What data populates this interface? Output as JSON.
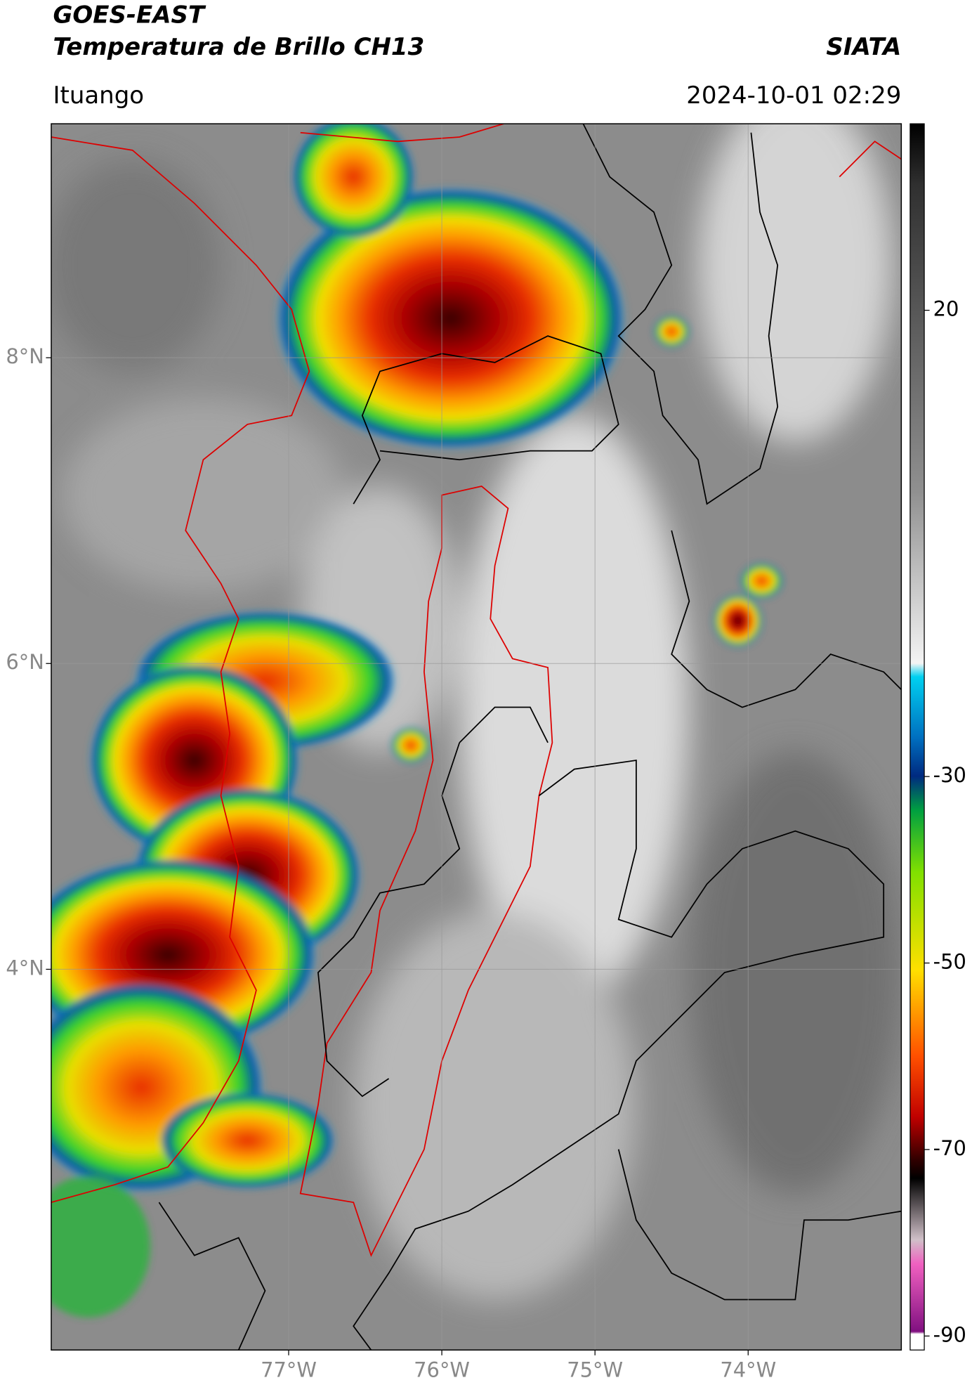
{
  "header": {
    "title": "GOES-EAST",
    "subtitle": "Temperatura de Brillo CH13",
    "source": "SIATA",
    "region": "Ituango",
    "datetime": "2024-10-01 02:29"
  },
  "map": {
    "xlim": [
      -78.55,
      -73
    ],
    "ylim": [
      1.51,
      9.53
    ],
    "xticks": [
      {
        "value": -77,
        "label": "77°W"
      },
      {
        "value": -76,
        "label": "76°W"
      },
      {
        "value": -75,
        "label": "75°W"
      },
      {
        "value": -74,
        "label": "74°W"
      }
    ],
    "yticks": [
      {
        "value": 8,
        "label": "8°N"
      },
      {
        "value": 6,
        "label": "6°N"
      },
      {
        "value": 4,
        "label": "4°N"
      }
    ],
    "grid": true
  },
  "colorbar": {
    "lim": [
      -91.5,
      40
    ],
    "ticks": [
      20,
      -30,
      -50,
      -70,
      -90
    ]
  }
}
